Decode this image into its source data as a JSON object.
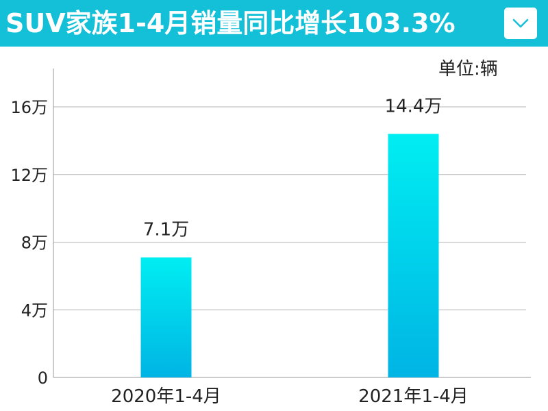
{
  "header": {
    "title": "SUV家族1-4月销量同比增长103.3%",
    "collapse_icon": "chevron-down-icon",
    "background": "#14bfd8"
  },
  "chart_data": {
    "type": "bar",
    "title": "SUV家族1-4月销量同比增长103.3%",
    "unit": "单位:辆",
    "categories": [
      "2020年1-4月",
      "2021年1-4月"
    ],
    "values": [
      7.1,
      14.4
    ],
    "value_labels": [
      "7.1万",
      "14.4万"
    ],
    "yticks": [
      0,
      4,
      8,
      12,
      16
    ],
    "ytick_labels": [
      "0",
      "4万",
      "8万",
      "12万",
      "16万"
    ],
    "ylim": [
      0,
      16
    ],
    "grid": true,
    "legend": "none",
    "bar_gradient": [
      "#00eef2",
      "#00b4e4"
    ]
  }
}
